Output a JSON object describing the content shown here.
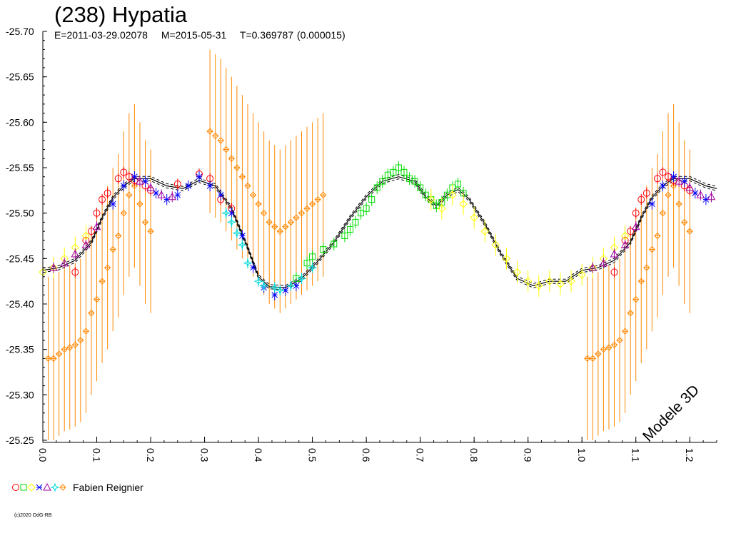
{
  "header": {
    "title": "(238) Hypatia",
    "epoch": "E=2011-03-29.02078",
    "m": "M=2015-05-31",
    "t": "T=0.369787 (0.000015)"
  },
  "model_label": "Modele 3D",
  "legend": {
    "observer": "Fabien Reignier",
    "symbols": [
      {
        "shape": "circle",
        "color": "#ff0000"
      },
      {
        "shape": "square",
        "color": "#00dd00"
      },
      {
        "shape": "diamond",
        "color": "#ffff00"
      },
      {
        "shape": "cross",
        "color": "#0000ff"
      },
      {
        "shape": "triangle",
        "color": "#a000a0"
      },
      {
        "shape": "star",
        "color": "#00dddd"
      },
      {
        "shape": "plus-diamond",
        "color": "#ff8800"
      }
    ]
  },
  "copyright": "(c)2020 OdG-RB",
  "chart_data": {
    "type": "scatter",
    "title": "(238) Hypatia",
    "xlabel": "",
    "ylabel": "",
    "xlim": [
      0.0,
      1.25
    ],
    "ylim": [
      -25.25,
      -25.7
    ],
    "x_ticks": [
      "0.0",
      "0.1",
      "0.2",
      "0.3",
      "0.4",
      "0.5",
      "0.6",
      "0.7",
      "0.8",
      "0.9",
      "1.0",
      "1.1",
      "1.2"
    ],
    "y_ticks": [
      "-25.70",
      "-25.65",
      "-25.60",
      "-25.55",
      "-25.50",
      "-25.45",
      "-25.40",
      "-25.35",
      "-25.30",
      "-25.25"
    ],
    "grid": false,
    "model_curve": {
      "x": [
        0.0,
        0.03,
        0.06,
        0.09,
        0.11,
        0.13,
        0.15,
        0.17,
        0.2,
        0.23,
        0.26,
        0.29,
        0.32,
        0.35,
        0.38,
        0.4,
        0.42,
        0.45,
        0.48,
        0.51,
        0.54,
        0.57,
        0.6,
        0.63,
        0.66,
        0.69,
        0.71,
        0.73,
        0.75,
        0.77,
        0.79,
        0.82,
        0.85,
        0.88,
        0.91,
        0.94,
        0.97,
        1.0,
        1.03,
        1.06,
        1.09,
        1.11,
        1.13,
        1.15,
        1.17,
        1.2,
        1.23,
        1.25
      ],
      "y": [
        -25.437,
        -25.44,
        -25.448,
        -25.468,
        -25.495,
        -25.517,
        -25.53,
        -25.538,
        -25.538,
        -25.53,
        -25.527,
        -25.536,
        -25.53,
        -25.505,
        -25.462,
        -25.43,
        -25.419,
        -25.418,
        -25.428,
        -25.447,
        -25.468,
        -25.495,
        -25.518,
        -25.535,
        -25.54,
        -25.535,
        -25.518,
        -25.508,
        -25.52,
        -25.526,
        -25.516,
        -25.488,
        -25.455,
        -25.428,
        -25.42,
        -25.425,
        -25.425,
        -25.437,
        -25.44,
        -25.448,
        -25.468,
        -25.495,
        -25.517,
        -25.53,
        -25.538,
        -25.538,
        -25.53,
        -25.527
      ]
    },
    "series": [
      {
        "name": "Fabien Reignier (red)",
        "marker": "circle",
        "color": "#ff0000",
        "error": 0.006,
        "x": [
          0.06,
          0.08,
          0.09,
          0.1,
          0.11,
          0.12,
          0.14,
          0.15,
          0.16,
          0.17,
          0.19,
          0.2,
          0.25,
          0.29,
          0.31,
          0.33,
          0.35,
          1.06,
          1.08,
          1.09,
          1.1,
          1.11,
          1.12,
          1.14,
          1.15,
          1.16,
          1.17,
          1.19,
          1.2
        ],
        "y": [
          -25.435,
          -25.47,
          -25.48,
          -25.5,
          -25.515,
          -25.522,
          -25.538,
          -25.545,
          -25.54,
          -25.536,
          -25.53,
          -25.525,
          -25.532,
          -25.543,
          -25.538,
          -25.515,
          -25.505,
          -25.435,
          -25.47,
          -25.48,
          -25.5,
          -25.515,
          -25.522,
          -25.538,
          -25.545,
          -25.54,
          -25.536,
          -25.53,
          -25.525
        ]
      },
      {
        "name": "Fabien Reignier (green)",
        "marker": "square",
        "color": "#00dd00",
        "error": 0.007,
        "x": [
          0.47,
          0.49,
          0.5,
          0.52,
          0.54,
          0.56,
          0.57,
          0.58,
          0.59,
          0.6,
          0.61,
          0.62,
          0.63,
          0.64,
          0.65,
          0.66,
          0.67,
          0.68,
          0.69,
          0.7,
          0.71,
          0.72,
          0.73,
          0.74,
          0.75,
          0.76,
          0.77,
          0.78
        ],
        "y": [
          -25.428,
          -25.445,
          -25.452,
          -25.46,
          -25.466,
          -25.475,
          -25.482,
          -25.49,
          -25.5,
          -25.505,
          -25.515,
          -25.528,
          -25.535,
          -25.542,
          -25.545,
          -25.55,
          -25.545,
          -25.538,
          -25.535,
          -25.528,
          -25.52,
          -25.515,
          -25.508,
          -25.512,
          -25.52,
          -25.528,
          -25.532,
          -25.522
        ]
      },
      {
        "name": "Fabien Reignier (yellow)",
        "marker": "diamond",
        "color": "#ffff00",
        "error": 0.012,
        "x": [
          0.0,
          0.02,
          0.04,
          0.06,
          0.08,
          0.72,
          0.74,
          0.76,
          0.78,
          0.8,
          0.82,
          0.84,
          0.86,
          0.88,
          0.9,
          0.92,
          0.94,
          0.96,
          0.98,
          1.0,
          1.02,
          1.04,
          1.06,
          1.08
        ],
        "y": [
          -25.435,
          -25.44,
          -25.45,
          -25.462,
          -25.475,
          -25.515,
          -25.505,
          -25.52,
          -25.51,
          -25.495,
          -25.48,
          -25.465,
          -25.45,
          -25.435,
          -25.425,
          -25.42,
          -25.425,
          -25.422,
          -25.425,
          -25.432,
          -25.44,
          -25.45,
          -25.462,
          -25.475
        ]
      },
      {
        "name": "Fabien Reignier (blue)",
        "marker": "cross",
        "color": "#0000ff",
        "error": 0.006,
        "x": [
          0.13,
          0.15,
          0.17,
          0.19,
          0.21,
          0.23,
          0.25,
          0.27,
          0.29,
          0.31,
          0.33,
          0.35,
          0.37,
          0.39,
          0.41,
          0.43,
          0.45,
          0.47,
          1.13,
          1.15,
          1.17,
          1.19,
          1.21,
          1.23
        ],
        "y": [
          -25.51,
          -25.53,
          -25.54,
          -25.535,
          -25.522,
          -25.515,
          -25.52,
          -25.53,
          -25.54,
          -25.53,
          -25.52,
          -25.5,
          -25.475,
          -25.44,
          -25.418,
          -25.41,
          -25.415,
          -25.42,
          -25.51,
          -25.53,
          -25.54,
          -25.535,
          -25.522,
          -25.515
        ]
      },
      {
        "name": "Fabien Reignier (purple)",
        "marker": "triangle",
        "color": "#a000a0",
        "error": 0.006,
        "x": [
          0.02,
          0.04,
          0.06,
          0.08,
          0.1,
          0.18,
          0.2,
          0.22,
          0.24,
          1.02,
          1.04,
          1.06,
          1.08,
          1.1,
          1.18,
          1.2,
          1.22,
          1.24
        ],
        "y": [
          -25.44,
          -25.445,
          -25.455,
          -25.465,
          -25.485,
          -25.535,
          -25.528,
          -25.52,
          -25.518,
          -25.44,
          -25.445,
          -25.455,
          -25.465,
          -25.485,
          -25.535,
          -25.528,
          -25.52,
          -25.518
        ]
      },
      {
        "name": "Fabien Reignier (cyan)",
        "marker": "star",
        "color": "#00dddd",
        "error": 0.006,
        "x": [
          0.34,
          0.35,
          0.36,
          0.37,
          0.38,
          0.4,
          0.41,
          0.43,
          0.44,
          0.46,
          0.48,
          0.5
        ],
        "y": [
          -25.5,
          -25.49,
          -25.478,
          -25.465,
          -25.445,
          -25.425,
          -25.42,
          -25.418,
          -25.415,
          -25.42,
          -25.428,
          -25.44
        ]
      },
      {
        "name": "Fabien Reignier (orange)",
        "marker": "plus-diamond",
        "color": "#ff8800",
        "error": 0.09,
        "x": [
          0.01,
          0.02,
          0.03,
          0.04,
          0.05,
          0.06,
          0.07,
          0.08,
          0.09,
          0.1,
          0.11,
          0.12,
          0.13,
          0.14,
          0.15,
          0.16,
          0.17,
          0.18,
          0.19,
          0.2,
          0.31,
          0.32,
          0.33,
          0.34,
          0.35,
          0.36,
          0.37,
          0.38,
          0.39,
          0.4,
          0.41,
          0.42,
          0.43,
          0.44,
          0.45,
          0.46,
          0.47,
          0.48,
          0.49,
          0.5,
          0.51,
          0.52,
          1.01,
          1.02,
          1.03,
          1.04,
          1.05,
          1.06,
          1.07,
          1.08,
          1.09,
          1.1,
          1.11,
          1.12,
          1.13,
          1.14,
          1.15,
          1.16,
          1.17,
          1.18,
          1.19,
          1.2
        ],
        "y": [
          -25.34,
          -25.34,
          -25.345,
          -25.35,
          -25.352,
          -25.355,
          -25.36,
          -25.37,
          -25.39,
          -25.405,
          -25.425,
          -25.44,
          -25.46,
          -25.475,
          -25.5,
          -25.52,
          -25.53,
          -25.51,
          -25.49,
          -25.48,
          -25.59,
          -25.585,
          -25.58,
          -25.57,
          -25.56,
          -25.55,
          -25.54,
          -25.53,
          -25.52,
          -25.51,
          -25.5,
          -25.49,
          -25.485,
          -25.48,
          -25.485,
          -25.49,
          -25.495,
          -25.5,
          -25.505,
          -25.51,
          -25.515,
          -25.52,
          -25.34,
          -25.34,
          -25.345,
          -25.35,
          -25.352,
          -25.355,
          -25.36,
          -25.37,
          -25.39,
          -25.405,
          -25.425,
          -25.44,
          -25.46,
          -25.475,
          -25.5,
          -25.52,
          -25.53,
          -25.51,
          -25.49,
          -25.48
        ]
      }
    ]
  }
}
